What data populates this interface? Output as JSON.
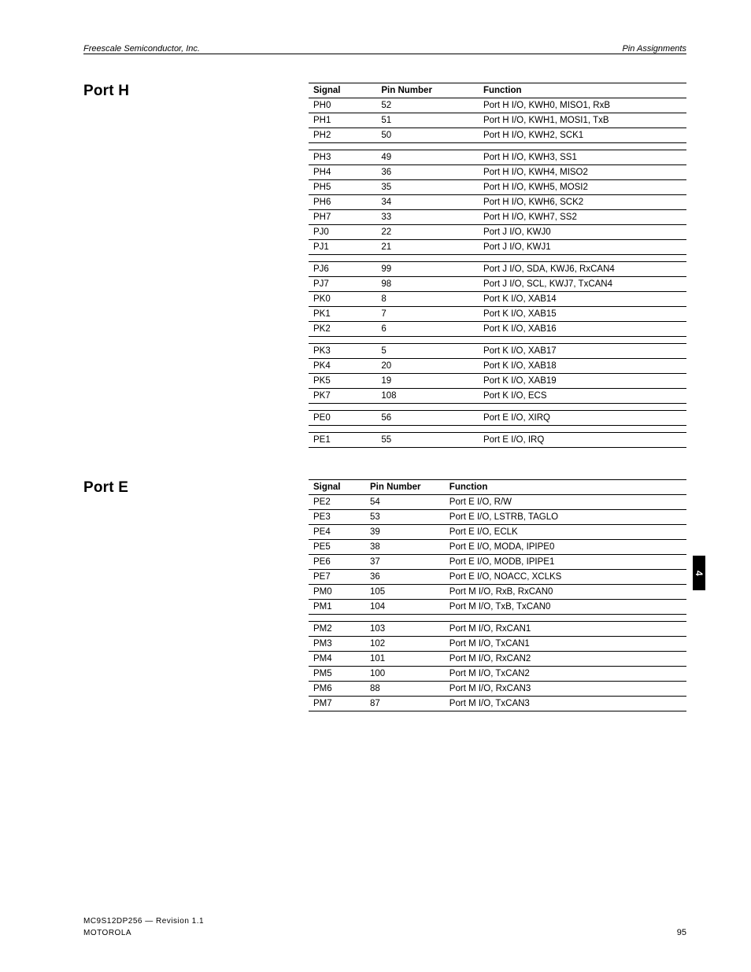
{
  "header": {
    "left_italic": "Freescale Semiconductor, Inc.",
    "right_italic": "Pin Assignments"
  },
  "side_tab": "4",
  "footer": {
    "left": "MOTOROLA",
    "left2": "MC9S12DP256 — Revision 1.1",
    "page_number": "95"
  },
  "sections": {
    "portH": {
      "title": "Port H",
      "columns": [
        "Signal",
        "Pin Number",
        "Function"
      ],
      "col_widths": [
        "18%",
        "27%",
        "55%"
      ],
      "groups": [
        [
          [
            "PH0",
            "52",
            "Port H I/O, KWH0, MISO1, RxB"
          ],
          [
            "PH1",
            "51",
            "Port H I/O, KWH1, MOSI1, TxB"
          ],
          [
            "PH2",
            "50",
            "Port H I/O, KWH2, SCK1"
          ]
        ],
        [
          [
            "PH3",
            "49",
            "Port H I/O, KWH3, SS1"
          ],
          [
            "PH4",
            "36",
            "Port H I/O, KWH4, MISO2"
          ],
          [
            "PH5",
            "35",
            "Port H I/O, KWH5, MOSI2"
          ],
          [
            "PH6",
            "34",
            "Port H I/O, KWH6, SCK2"
          ],
          [
            "PH7",
            "33",
            "Port H I/O, KWH7, SS2"
          ],
          [
            "PJ0",
            "22",
            "Port J I/O, KWJ0"
          ],
          [
            "PJ1",
            "21",
            "Port J I/O, KWJ1"
          ]
        ],
        [
          [
            "PJ6",
            "99",
            "Port J I/O, SDA, KWJ6, RxCAN4"
          ],
          [
            "PJ7",
            "98",
            "Port J I/O, SCL, KWJ7, TxCAN4"
          ],
          [
            "PK0",
            "8",
            "Port K I/O, XAB14"
          ],
          [
            "PK1",
            "7",
            "Port K I/O, XAB15"
          ],
          [
            "PK2",
            "6",
            "Port K I/O, XAB16"
          ]
        ],
        [
          [
            "PK3",
            "5",
            "Port K I/O, XAB17"
          ],
          [
            "PK4",
            "20",
            "Port K I/O, XAB18"
          ],
          [
            "PK5",
            "19",
            "Port K I/O, XAB19"
          ],
          [
            "PK7",
            "108",
            "Port K I/O, ECS"
          ]
        ],
        [
          [
            "PE0",
            "56",
            "Port E I/O, XIRQ"
          ]
        ],
        [
          [
            "PE1",
            "55",
            "Port E I/O, IRQ"
          ]
        ]
      ]
    },
    "portE": {
      "title": "Port E",
      "columns": [
        "Signal",
        "Pin Number",
        "Function"
      ],
      "col_widths": [
        "15%",
        "21%",
        "64%"
      ],
      "groups": [
        [
          [
            "PE2",
            "54",
            "Port E I/O, R/W"
          ],
          [
            "PE3",
            "53",
            "Port E I/O, LSTRB, TAGLO"
          ],
          [
            "PE4",
            "39",
            "Port E I/O, ECLK"
          ],
          [
            "PE5",
            "38",
            "Port E I/O, MODA, IPIPE0"
          ],
          [
            "PE6",
            "37",
            "Port E I/O, MODB, IPIPE1"
          ],
          [
            "PE7",
            "36",
            "Port E I/O, NOACC, XCLKS"
          ],
          [
            "PM0",
            "105",
            "Port M I/O, RxB, RxCAN0"
          ],
          [
            "PM1",
            "104",
            "Port M I/O, TxB, TxCAN0"
          ]
        ],
        [
          [
            "PM2",
            "103",
            "Port M I/O, RxCAN1"
          ],
          [
            "PM3",
            "102",
            "Port M I/O, TxCAN1"
          ],
          [
            "PM4",
            "101",
            "Port M I/O, RxCAN2"
          ],
          [
            "PM5",
            "100",
            "Port M I/O, TxCAN2"
          ],
          [
            "PM6",
            "88",
            "Port M I/O, RxCAN3"
          ],
          [
            "PM7",
            "87",
            "Port M I/O, TxCAN3"
          ]
        ]
      ]
    }
  }
}
